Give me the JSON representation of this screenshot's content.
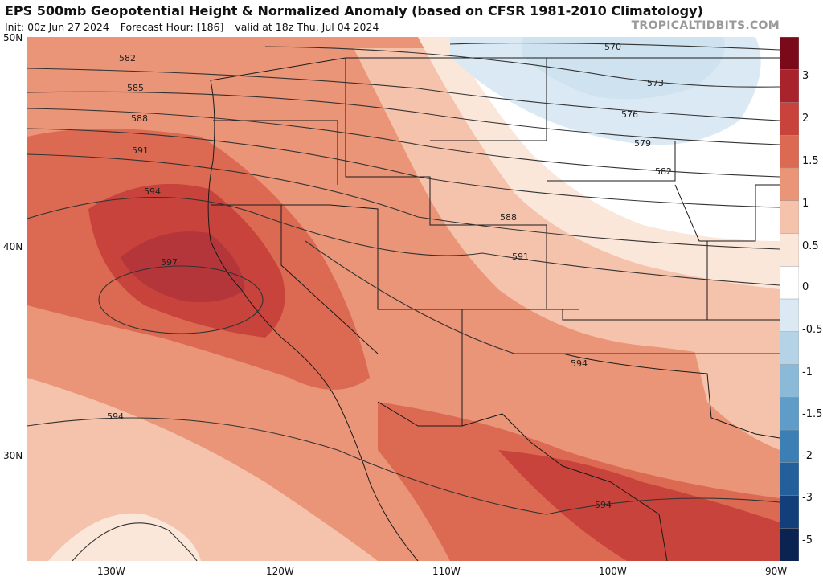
{
  "header": {
    "title": "EPS 500mb Geopotential Height & Normalized Anomaly (based on CFSR 1981-2010 Climatology)",
    "init": "Init: 00z Jun 27 2024",
    "forecast_hour": "Forecast Hour: [186]",
    "valid": "valid at 18z Thu, Jul 04 2024",
    "watermark": "TROPICALTIDBITS.COM"
  },
  "axes": {
    "lat_labels": [
      "50N",
      "40N",
      "30N"
    ],
    "lon_labels": [
      "130W",
      "120W",
      "110W",
      "100W",
      "90W"
    ]
  },
  "colorbar": {
    "labels": [
      "3",
      "2",
      "1.5",
      "1",
      "0.5",
      "0",
      "-0.5",
      "-1",
      "-1.5",
      "-2",
      "-3",
      "-5"
    ],
    "colors": [
      "#7a0a1a",
      "#a8232c",
      "#c8433b",
      "#dc6a52",
      "#ea9478",
      "#f5c3ab",
      "#fbe6da",
      "#ffffff",
      "#dae9f3",
      "#b5d3e6",
      "#8bbad8",
      "#5f9cc7",
      "#3c7fb5",
      "#235f9b",
      "#123f79",
      "#0a2350"
    ]
  },
  "contours": {
    "labels": [
      "570",
      "573",
      "576",
      "579",
      "582",
      "582",
      "585",
      "588",
      "588",
      "591",
      "591",
      "594",
      "594",
      "594",
      "594",
      "597"
    ]
  },
  "map_colors": {
    "ocean_warm": "#ea9478",
    "core": "#c8433b",
    "neutral": "#ffffff",
    "cool": "#cfe2ef"
  }
}
